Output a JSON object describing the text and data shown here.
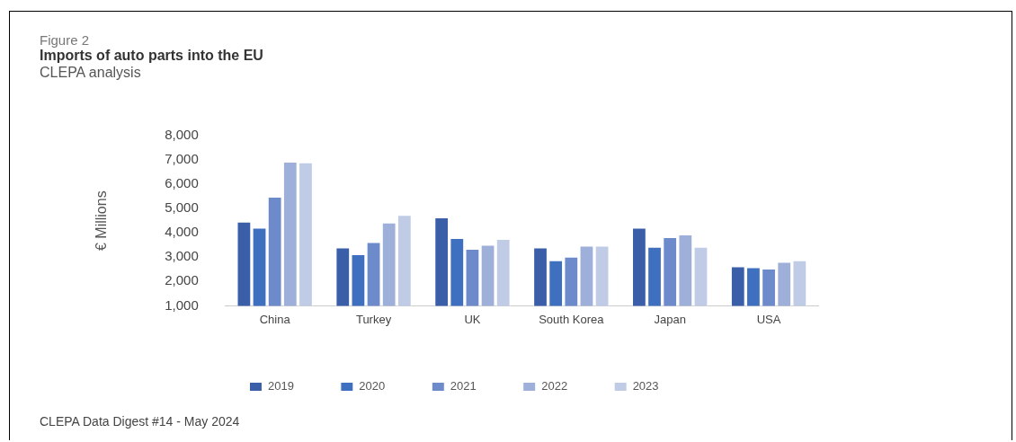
{
  "chart_data": {
    "type": "bar",
    "title": "Imports of auto parts into the EU",
    "subtitle": "Figure 2",
    "ylabel": "€ Millions",
    "annotations": [
      "CLEPA analysis",
      "CLEPA Data Digest #14 - May 2024"
    ],
    "categories": [
      "China",
      "Turkey",
      "UK",
      "South Korea",
      "Japan",
      "USA"
    ],
    "series": [
      {
        "name": "2019",
        "color": "#3a5fa8",
        "values": [
          4460,
          3400,
          4640,
          3400,
          4210,
          2620
        ]
      },
      {
        "name": "2020",
        "color": "#3f6fbf",
        "values": [
          4210,
          3120,
          3790,
          2870,
          3430,
          2590
        ]
      },
      {
        "name": "2021",
        "color": "#6d8acb",
        "values": [
          5490,
          3620,
          3340,
          3020,
          3820,
          2530
        ]
      },
      {
        "name": "2022",
        "color": "#9eafd9",
        "values": [
          6930,
          4420,
          3510,
          3470,
          3930,
          2810
        ]
      },
      {
        "name": "2023",
        "color": "#c0cbe6",
        "values": [
          6900,
          4740,
          3750,
          3470,
          3430,
          2870
        ]
      }
    ],
    "ylim": [
      1000,
      8000
    ],
    "yticks": [
      {
        "value": 1000,
        "label": "1,000"
      },
      {
        "value": 2000,
        "label": "2,000"
      },
      {
        "value": 3000,
        "label": "3,000"
      },
      {
        "value": 4000,
        "label": "4,000"
      },
      {
        "value": 5000,
        "label": "5,000"
      },
      {
        "value": 6000,
        "label": "6,000"
      },
      {
        "value": 7000,
        "label": "7,000"
      },
      {
        "value": 8000,
        "label": "8,000"
      }
    ],
    "grid": false,
    "legend": "bottom"
  }
}
